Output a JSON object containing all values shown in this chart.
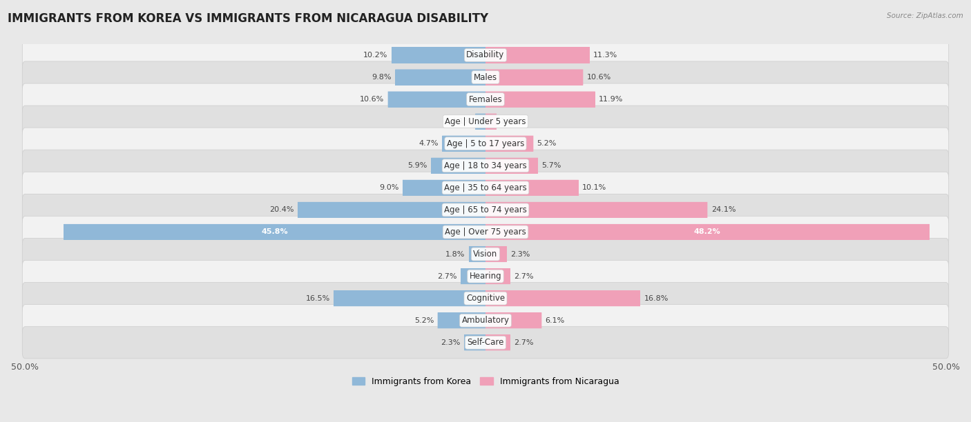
{
  "title": "IMMIGRANTS FROM KOREA VS IMMIGRANTS FROM NICARAGUA DISABILITY",
  "source": "Source: ZipAtlas.com",
  "categories": [
    "Disability",
    "Males",
    "Females",
    "Age | Under 5 years",
    "Age | 5 to 17 years",
    "Age | 18 to 34 years",
    "Age | 35 to 64 years",
    "Age | 65 to 74 years",
    "Age | Over 75 years",
    "Vision",
    "Hearing",
    "Cognitive",
    "Ambulatory",
    "Self-Care"
  ],
  "korea_values": [
    10.2,
    9.8,
    10.6,
    1.1,
    4.7,
    5.9,
    9.0,
    20.4,
    45.8,
    1.8,
    2.7,
    16.5,
    5.2,
    2.3
  ],
  "nicaragua_values": [
    11.3,
    10.6,
    11.9,
    1.2,
    5.2,
    5.7,
    10.1,
    24.1,
    48.2,
    2.3,
    2.7,
    16.8,
    6.1,
    2.7
  ],
  "korea_color": "#90b8d8",
  "nicaragua_color": "#f0a0b8",
  "korea_color_dark": "#6090b8",
  "nicaragua_color_dark": "#d86080",
  "background_color": "#e8e8e8",
  "row_color_odd": "#f2f2f2",
  "row_color_even": "#e0e0e0",
  "axis_max": 50.0,
  "legend_korea": "Immigrants from Korea",
  "legend_nicaragua": "Immigrants from Nicaragua",
  "title_fontsize": 12,
  "label_fontsize": 8.5,
  "value_fontsize": 8.0
}
